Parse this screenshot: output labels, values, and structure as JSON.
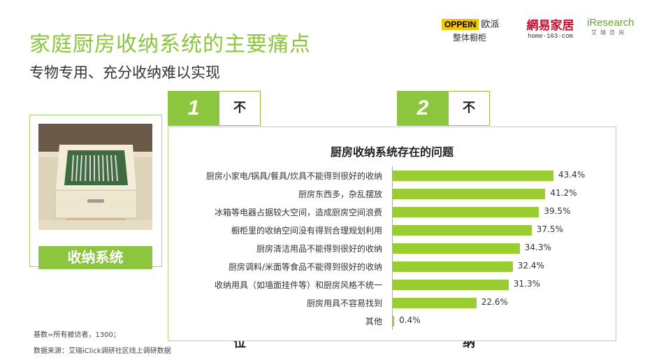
{
  "header": {
    "title": "家庭厨房收纳系统的主要痛点",
    "subtitle": "专物专用、充分收纳难以实现"
  },
  "logos": {
    "oppein_brand": "OPPEIN",
    "oppein_script": "欧派",
    "oppein_sub": "整体橱柜",
    "netease_name": "網易家居",
    "netease_url": "home·163·com",
    "iresearch_name": "iResearch",
    "iresearch_sub": "艾瑞咨询"
  },
  "tabs": [
    {
      "num": "1",
      "label": "不能实现专物专位"
    },
    {
      "num": "2",
      "label": "不能实现充分收纳"
    }
  ],
  "left_panel": {
    "badge": "收纳系统"
  },
  "colors": {
    "accent": "#8cc63f",
    "bar": "#9acd32"
  },
  "chart_data": {
    "type": "bar",
    "orientation": "horizontal",
    "title": "厨房收纳系统存在的问题",
    "categories": [
      "厨房小家电/锅具/餐具/炊具不能得到很好的收纳",
      "厨房东西多，杂乱摆放",
      "冰箱等电器占据较大空间，造成厨房空间浪费",
      "橱柜里的收纳空间没有得到合理规划利用",
      "厨房清洁用品不能得到很好的收纳",
      "厨房调料/米面等食品不能得到很好的收纳",
      "收纳用具（如墙面挂件等）和厨房风格不统一",
      "厨房用具不容易找到",
      "其他"
    ],
    "values": [
      43.4,
      41.2,
      39.5,
      37.5,
      34.3,
      32.4,
      31.3,
      22.6,
      0.4
    ],
    "labels": [
      "43.4%",
      "41.2%",
      "39.5%",
      "37.5%",
      "34.3%",
      "32.4%",
      "31.3%",
      "22.6%",
      "0.4%"
    ],
    "xlim": [
      0,
      50
    ],
    "grid": false
  },
  "footer": {
    "base": "基数=所有被访者，1300；",
    "source": "数据来源：艾瑞iClick调研社区线上调研数据"
  }
}
